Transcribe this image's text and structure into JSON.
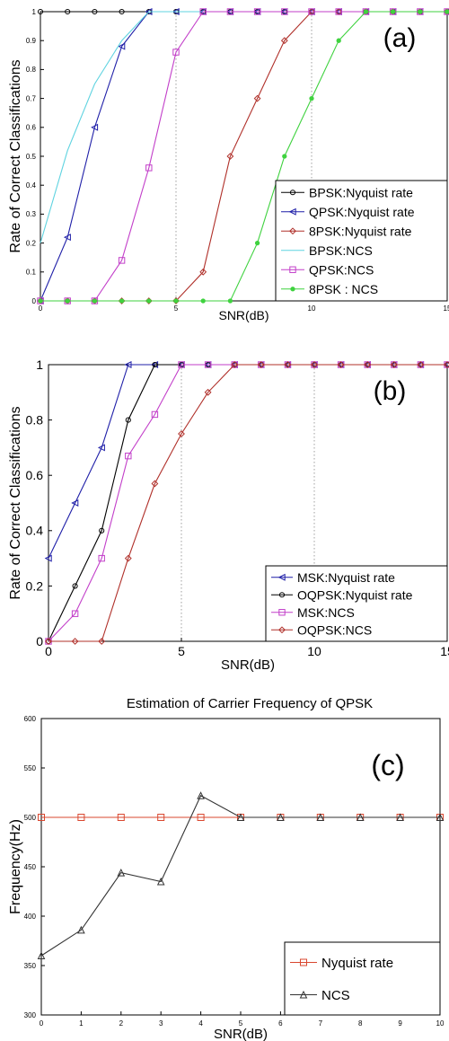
{
  "chart_data": [
    {
      "type": "line",
      "panel_label": "(a)",
      "xlabel": "SNR(dB)",
      "ylabel": "Rate  of  Correct  Classifications",
      "xlim": [
        0,
        15
      ],
      "ylim": [
        0,
        1
      ],
      "x_ticks": [
        "0",
        "5",
        "10",
        "15"
      ],
      "y_ticks": [
        "0",
        "0.1",
        "0.2",
        "0.3",
        "0.4",
        "0.5",
        "0.6",
        "0.7",
        "0.8",
        "0.9",
        "1"
      ],
      "grid": "vertical dotted",
      "legend_position": "bottom-right",
      "series": [
        {
          "name": "BPSK:Nyquist rate",
          "color": "#000000",
          "marker": "circle",
          "points": [
            [
              0,
              1
            ],
            [
              1,
              1
            ],
            [
              2,
              1
            ],
            [
              3,
              1
            ],
            [
              4,
              1
            ],
            [
              5,
              1
            ],
            [
              6,
              1
            ],
            [
              7,
              1
            ],
            [
              8,
              1
            ],
            [
              9,
              1
            ],
            [
              10,
              1
            ],
            [
              11,
              1
            ],
            [
              12,
              1
            ],
            [
              13,
              1
            ],
            [
              14,
              1
            ],
            [
              15,
              1
            ]
          ]
        },
        {
          "name": "QPSK:Nyquist rate",
          "color": "#1f1fa8",
          "marker": "triangle-left",
          "points": [
            [
              0,
              0
            ],
            [
              1,
              0.22
            ],
            [
              2,
              0.6
            ],
            [
              3,
              0.88
            ],
            [
              4,
              1
            ],
            [
              5,
              1
            ],
            [
              6,
              1
            ],
            [
              7,
              1
            ],
            [
              8,
              1
            ],
            [
              9,
              1
            ],
            [
              10,
              1
            ],
            [
              11,
              1
            ],
            [
              12,
              1
            ],
            [
              13,
              1
            ],
            [
              14,
              1
            ],
            [
              15,
              1
            ]
          ]
        },
        {
          "name": "8PSK:Nyquist rate",
          "color": "#b0302a",
          "marker": "diamond",
          "points": [
            [
              0,
              0
            ],
            [
              1,
              0
            ],
            [
              2,
              0
            ],
            [
              3,
              0
            ],
            [
              4,
              0
            ],
            [
              5,
              0
            ],
            [
              6,
              0.1
            ],
            [
              7,
              0.5
            ],
            [
              8,
              0.7
            ],
            [
              9,
              0.9
            ],
            [
              10,
              1
            ],
            [
              11,
              1
            ],
            [
              12,
              1
            ],
            [
              13,
              1
            ],
            [
              14,
              1
            ],
            [
              15,
              1
            ]
          ]
        },
        {
          "name": "BPSK:NCS",
          "color": "#5fd3e0",
          "marker": "none",
          "points": [
            [
              0,
              0.2
            ],
            [
              1,
              0.52
            ],
            [
              2,
              0.75
            ],
            [
              3,
              0.9
            ],
            [
              4,
              1
            ],
            [
              5,
              1
            ],
            [
              6,
              1
            ],
            [
              7,
              1
            ],
            [
              8,
              1
            ],
            [
              9,
              1
            ],
            [
              10,
              1
            ],
            [
              11,
              1
            ],
            [
              12,
              1
            ],
            [
              13,
              1
            ],
            [
              14,
              1
            ],
            [
              15,
              1
            ]
          ]
        },
        {
          "name": "QPSK:NCS",
          "color": "#c23ec9",
          "marker": "square",
          "points": [
            [
              0,
              0
            ],
            [
              1,
              0
            ],
            [
              2,
              0
            ],
            [
              3,
              0.14
            ],
            [
              4,
              0.46
            ],
            [
              5,
              0.86
            ],
            [
              6,
              1
            ],
            [
              7,
              1
            ],
            [
              8,
              1
            ],
            [
              9,
              1
            ],
            [
              10,
              1
            ],
            [
              11,
              1
            ],
            [
              12,
              1
            ],
            [
              13,
              1
            ],
            [
              14,
              1
            ],
            [
              15,
              1
            ]
          ]
        },
        {
          "name": "8PSK : NCS",
          "color": "#3fd23f",
          "marker": "star",
          "points": [
            [
              0,
              0
            ],
            [
              1,
              0
            ],
            [
              2,
              0
            ],
            [
              3,
              0
            ],
            [
              4,
              0
            ],
            [
              5,
              0
            ],
            [
              6,
              0
            ],
            [
              7,
              0
            ],
            [
              8,
              0.2
            ],
            [
              9,
              0.5
            ],
            [
              10,
              0.7
            ],
            [
              11,
              0.9
            ],
            [
              12,
              1
            ],
            [
              13,
              1
            ],
            [
              14,
              1
            ],
            [
              15,
              1
            ]
          ]
        }
      ]
    },
    {
      "type": "line",
      "panel_label": "(b)",
      "xlabel": "SNR(dB)",
      "ylabel": "Rate  of  Correct  Classifications",
      "xlim": [
        0,
        15
      ],
      "ylim": [
        0,
        1
      ],
      "x_ticks": [
        "0",
        "5",
        "10",
        "15"
      ],
      "y_ticks": [
        "0",
        "0.2",
        "0.4",
        "0.6",
        "0.8",
        "1"
      ],
      "grid": "vertical dotted",
      "legend_position": "bottom-right",
      "series": [
        {
          "name": "MSK:Nyquist rate",
          "color": "#1f1fa8",
          "marker": "triangle-left",
          "points": [
            [
              0,
              0.3
            ],
            [
              1,
              0.5
            ],
            [
              2,
              0.7
            ],
            [
              3,
              1
            ],
            [
              4,
              1
            ],
            [
              5,
              1
            ],
            [
              6,
              1
            ],
            [
              7,
              1
            ],
            [
              8,
              1
            ],
            [
              9,
              1
            ],
            [
              10,
              1
            ],
            [
              11,
              1
            ],
            [
              12,
              1
            ],
            [
              13,
              1
            ],
            [
              14,
              1
            ],
            [
              15,
              1
            ]
          ]
        },
        {
          "name": "OQPSK:Nyquist rate",
          "color": "#000000",
          "marker": "circle",
          "points": [
            [
              0,
              0
            ],
            [
              1,
              0.2
            ],
            [
              2,
              0.4
            ],
            [
              3,
              0.8
            ],
            [
              4,
              1
            ],
            [
              5,
              1
            ],
            [
              6,
              1
            ],
            [
              7,
              1
            ],
            [
              8,
              1
            ],
            [
              9,
              1
            ],
            [
              10,
              1
            ],
            [
              11,
              1
            ],
            [
              12,
              1
            ],
            [
              13,
              1
            ],
            [
              14,
              1
            ],
            [
              15,
              1
            ]
          ]
        },
        {
          "name": "MSK:NCS",
          "color": "#c23ec9",
          "marker": "square",
          "points": [
            [
              0,
              0
            ],
            [
              1,
              0.1
            ],
            [
              2,
              0.3
            ],
            [
              3,
              0.67
            ],
            [
              4,
              0.82
            ],
            [
              5,
              1
            ],
            [
              6,
              1
            ],
            [
              7,
              1
            ],
            [
              8,
              1
            ],
            [
              9,
              1
            ],
            [
              10,
              1
            ],
            [
              11,
              1
            ],
            [
              12,
              1
            ],
            [
              13,
              1
            ],
            [
              14,
              1
            ],
            [
              15,
              1
            ]
          ]
        },
        {
          "name": "OQPSK:NCS",
          "color": "#b0302a",
          "marker": "diamond",
          "points": [
            [
              0,
              0
            ],
            [
              1,
              0
            ],
            [
              2,
              0
            ],
            [
              3,
              0.3
            ],
            [
              4,
              0.57
            ],
            [
              5,
              0.75
            ],
            [
              6,
              0.9
            ],
            [
              7,
              1
            ],
            [
              8,
              1
            ],
            [
              9,
              1
            ],
            [
              10,
              1
            ],
            [
              11,
              1
            ],
            [
              12,
              1
            ],
            [
              13,
              1
            ],
            [
              14,
              1
            ],
            [
              15,
              1
            ]
          ]
        }
      ]
    },
    {
      "type": "line",
      "panel_label": "(c)",
      "title": "Estimation of Carrier Frequency of QPSK",
      "xlabel": "SNR(dB)",
      "ylabel": "Frequency(Hz)",
      "xlim": [
        0,
        10
      ],
      "ylim": [
        300,
        600
      ],
      "x_ticks": [
        "0",
        "1",
        "2",
        "3",
        "4",
        "5",
        "6",
        "7",
        "8",
        "9",
        "10"
      ],
      "y_ticks": [
        "300",
        "350",
        "400",
        "450",
        "500",
        "550",
        "600"
      ],
      "grid": "off",
      "legend_position": "bottom-right",
      "series": [
        {
          "name": "Nyquist rate",
          "color": "#d9472f",
          "marker": "square",
          "points": [
            [
              0,
              500
            ],
            [
              1,
              500
            ],
            [
              2,
              500
            ],
            [
              3,
              500
            ],
            [
              4,
              500
            ],
            [
              5,
              500
            ],
            [
              6,
              500
            ],
            [
              7,
              500
            ],
            [
              8,
              500
            ],
            [
              9,
              500
            ],
            [
              10,
              500
            ]
          ]
        },
        {
          "name": "NCS",
          "color": "#333333",
          "marker": "triangle-up",
          "points": [
            [
              0,
              360
            ],
            [
              1,
              386
            ],
            [
              2,
              444
            ],
            [
              3,
              435
            ],
            [
              4,
              522
            ],
            [
              5,
              500
            ],
            [
              6,
              500
            ],
            [
              7,
              500
            ],
            [
              8,
              500
            ],
            [
              9,
              500
            ],
            [
              10,
              500
            ]
          ]
        }
      ]
    }
  ]
}
